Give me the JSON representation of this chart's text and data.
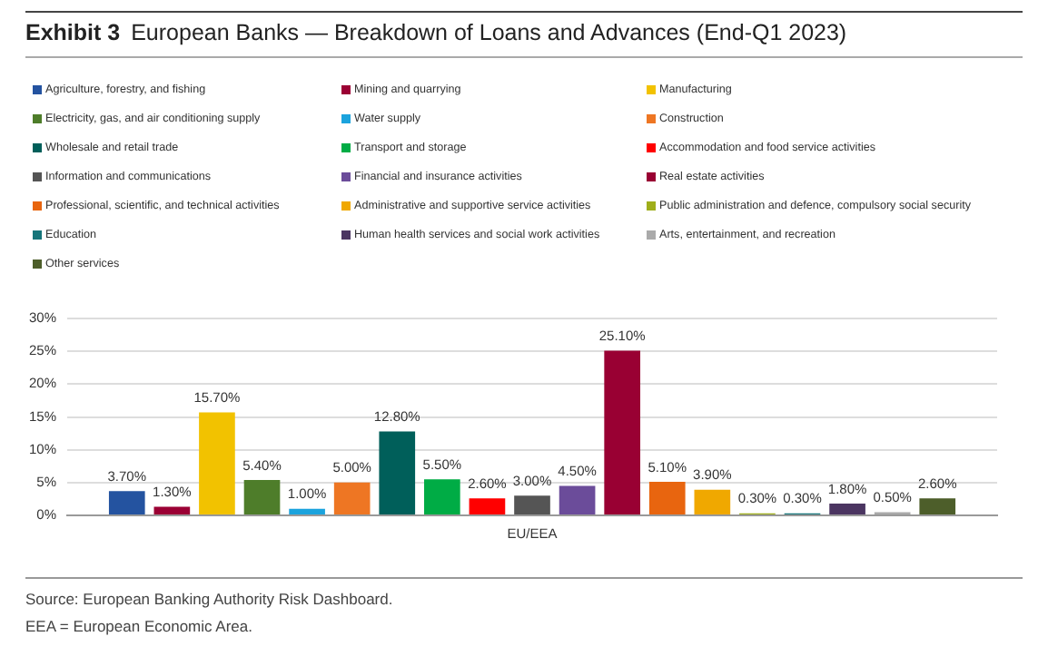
{
  "chart_data": {
    "type": "bar",
    "title": "Exhibit 3",
    "subtitle": "European Banks — Breakdown of Loans and Advances (End-Q1 2023)",
    "categories": [
      "EU/EEA"
    ],
    "series": [
      {
        "name": "Agriculture, forestry, and fishing",
        "color": "#2453a0",
        "values": [
          3.7
        ],
        "value_labels": [
          "3.70%"
        ]
      },
      {
        "name": "Mining and quarrying",
        "color": "#9b0034",
        "values": [
          1.3
        ],
        "value_labels": [
          "1.30%"
        ]
      },
      {
        "name": "Manufacturing",
        "color": "#f2c200",
        "values": [
          15.7
        ],
        "value_labels": [
          "15.70%"
        ]
      },
      {
        "name": "Electricity, gas, and air conditioning supply",
        "color": "#4e7d2a",
        "values": [
          5.4
        ],
        "value_labels": [
          "5.40%"
        ]
      },
      {
        "name": "Water supply",
        "color": "#1ba3dd",
        "values": [
          1.0
        ],
        "value_labels": [
          "1.00%"
        ]
      },
      {
        "name": "Construction",
        "color": "#ee7623",
        "values": [
          5.0
        ],
        "value_labels": [
          "5.00%"
        ]
      },
      {
        "name": "Wholesale and retail trade",
        "color": "#005f5a",
        "values": [
          12.8
        ],
        "value_labels": [
          "12.80%"
        ]
      },
      {
        "name": "Transport and storage",
        "color": "#00ac45",
        "values": [
          5.5
        ],
        "value_labels": [
          "5.50%"
        ]
      },
      {
        "name": "Accommodation and food service activities",
        "color": "#ff0000",
        "values": [
          2.6
        ],
        "value_labels": [
          "2.60%"
        ]
      },
      {
        "name": "Information and communications",
        "color": "#555555",
        "values": [
          3.0
        ],
        "value_labels": [
          "3.00%"
        ]
      },
      {
        "name": "Financial and insurance activities",
        "color": "#6b4c9a",
        "values": [
          4.5
        ],
        "value_labels": [
          "4.50%"
        ]
      },
      {
        "name": "Real estate activities",
        "color": "#990033",
        "values": [
          25.1
        ],
        "value_labels": [
          "25.10%"
        ]
      },
      {
        "name": "Professional, scientific, and technical activities",
        "color": "#e8650f",
        "values": [
          5.1
        ],
        "value_labels": [
          "5.10%"
        ]
      },
      {
        "name": "Administrative and supportive service activities",
        "color": "#f0a800",
        "values": [
          3.9
        ],
        "value_labels": [
          "3.90%"
        ]
      },
      {
        "name": "Public administration and defence, compulsory social security",
        "color": "#9fae1a",
        "values": [
          0.3
        ],
        "value_labels": [
          "0.30%"
        ]
      },
      {
        "name": "Education",
        "color": "#16757a",
        "values": [
          0.3
        ],
        "value_labels": [
          "0.30%"
        ]
      },
      {
        "name": "Human health services and social work activities",
        "color": "#4b3561",
        "values": [
          1.8
        ],
        "value_labels": [
          "1.80%"
        ]
      },
      {
        "name": "Arts, entertainment, and recreation",
        "color": "#aaaaaa",
        "values": [
          0.5
        ],
        "value_labels": [
          "0.50%"
        ]
      },
      {
        "name": "Other services",
        "color": "#4d5e2a",
        "values": [
          2.6
        ],
        "value_labels": [
          "2.60%"
        ]
      }
    ],
    "ylim": [
      0,
      30
    ],
    "yticks": [
      {
        "value": 0,
        "label": "0%"
      },
      {
        "value": 5,
        "label": "5%"
      },
      {
        "value": 10,
        "label": "10%"
      },
      {
        "value": 15,
        "label": "15%"
      },
      {
        "value": 20,
        "label": "20%"
      },
      {
        "value": 25,
        "label": "25%"
      },
      {
        "value": 30,
        "label": "30%"
      }
    ],
    "grid": "y",
    "legend": "top",
    "annotations": [
      "Source: European Banking Authority Risk Dashboard.",
      "EEA = European Economic Area."
    ]
  }
}
